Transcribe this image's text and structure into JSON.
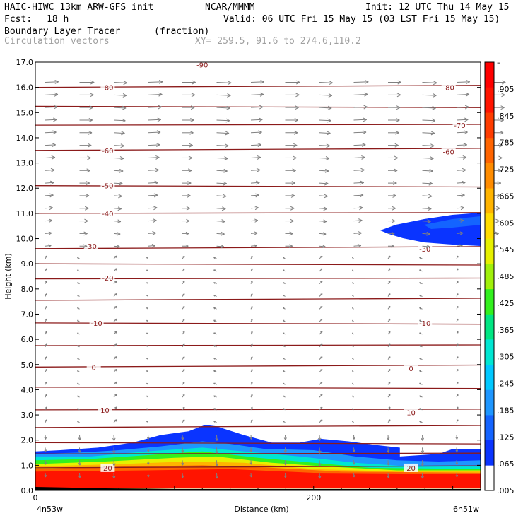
{
  "header": {
    "model": "HAIC-HIWC 13km ARW-GFS init",
    "org": "NCAR/MMMM",
    "init": "Init: 12 UTC Thu 14 May 15",
    "fcst_label": "Fcst:",
    "fcst_value": "18 h",
    "valid": "Valid: 06 UTC Fri 15 May 15 (03 LST Fri 15 May 15)",
    "field_name": "Boundary Layer Tracer",
    "field_unit": "(fraction)",
    "vector_label": "Circulation vectors",
    "xy_label": "XY= 259.5, 91.6 to 274.6,110.2"
  },
  "colors": {
    "contour": "#8b1a1a",
    "vector": "#808080",
    "scale": [
      "#ffffff",
      "#0a34ff",
      "#1464ff",
      "#1e96ff",
      "#00c8ff",
      "#00e6d2",
      "#00e682",
      "#32f01e",
      "#a0f00a",
      "#e6f000",
      "#ffdc00",
      "#ffb400",
      "#ff8c00",
      "#ff6400",
      "#ff3c00",
      "#ff1400",
      "#ff0000"
    ]
  },
  "chart_data": {
    "type": "heatmap",
    "description_type": "vertical cross-section",
    "ylabel": "Height (km)",
    "xlabel": "Distance (km)",
    "ylim": [
      0,
      17
    ],
    "xlim": [
      0,
      320
    ],
    "y_ticks": [
      "0.0",
      "1.0",
      "2.0",
      "3.0",
      "4.0",
      "5.0",
      "6.0",
      "7.0",
      "8.0",
      "9.0",
      "10.0",
      "11.0",
      "12.0",
      "13.0",
      "14.0",
      "15.0",
      "16.0",
      "17.0"
    ],
    "x_ticks": [
      {
        "value": 0,
        "label": "0"
      },
      {
        "value": 200,
        "label": "200"
      }
    ],
    "x_endpoints": {
      "left": "4n53w",
      "right": "6n51w"
    },
    "colorbar": {
      "labels": [
        ".005",
        ".065",
        ".125",
        ".185",
        ".245",
        ".305",
        ".365",
        ".425",
        ".485",
        ".545",
        ".605",
        ".665",
        ".725",
        ".785",
        ".845",
        ".905",
        "–"
      ]
    },
    "contour_labels": [
      {
        "value": "-80",
        "x": 52,
        "h": 16.0
      },
      {
        "value": "-80",
        "x": 297,
        "h": 16.0
      },
      {
        "value": "-70",
        "x": 305,
        "h": 14.5
      },
      {
        "value": "-60",
        "x": 52,
        "h": 13.5
      },
      {
        "value": "-60",
        "x": 297,
        "h": 13.45
      },
      {
        "value": "-50",
        "x": 52,
        "h": 12.1
      },
      {
        "value": "-40",
        "x": 52,
        "h": 11.0
      },
      {
        "value": "-30",
        "x": 40,
        "h": 9.7
      },
      {
        "value": "-30",
        "x": 280,
        "h": 9.6
      },
      {
        "value": "-20",
        "x": 52,
        "h": 8.45
      },
      {
        "value": "-10",
        "x": 44,
        "h": 6.65
      },
      {
        "value": "-10",
        "x": 280,
        "h": 6.65
      },
      {
        "value": "0",
        "x": 42,
        "h": 4.9
      },
      {
        "value": "0",
        "x": 270,
        "h": 4.85
      },
      {
        "value": "10",
        "x": 50,
        "h": 3.2
      },
      {
        "value": "10",
        "x": 270,
        "h": 3.1
      },
      {
        "value": "20",
        "x": 52,
        "h": 0.9
      },
      {
        "value": "20",
        "x": 270,
        "h": 0.9
      }
    ],
    "top_label": {
      "value": "-90",
      "x": 120,
      "h": 16.9
    }
  }
}
